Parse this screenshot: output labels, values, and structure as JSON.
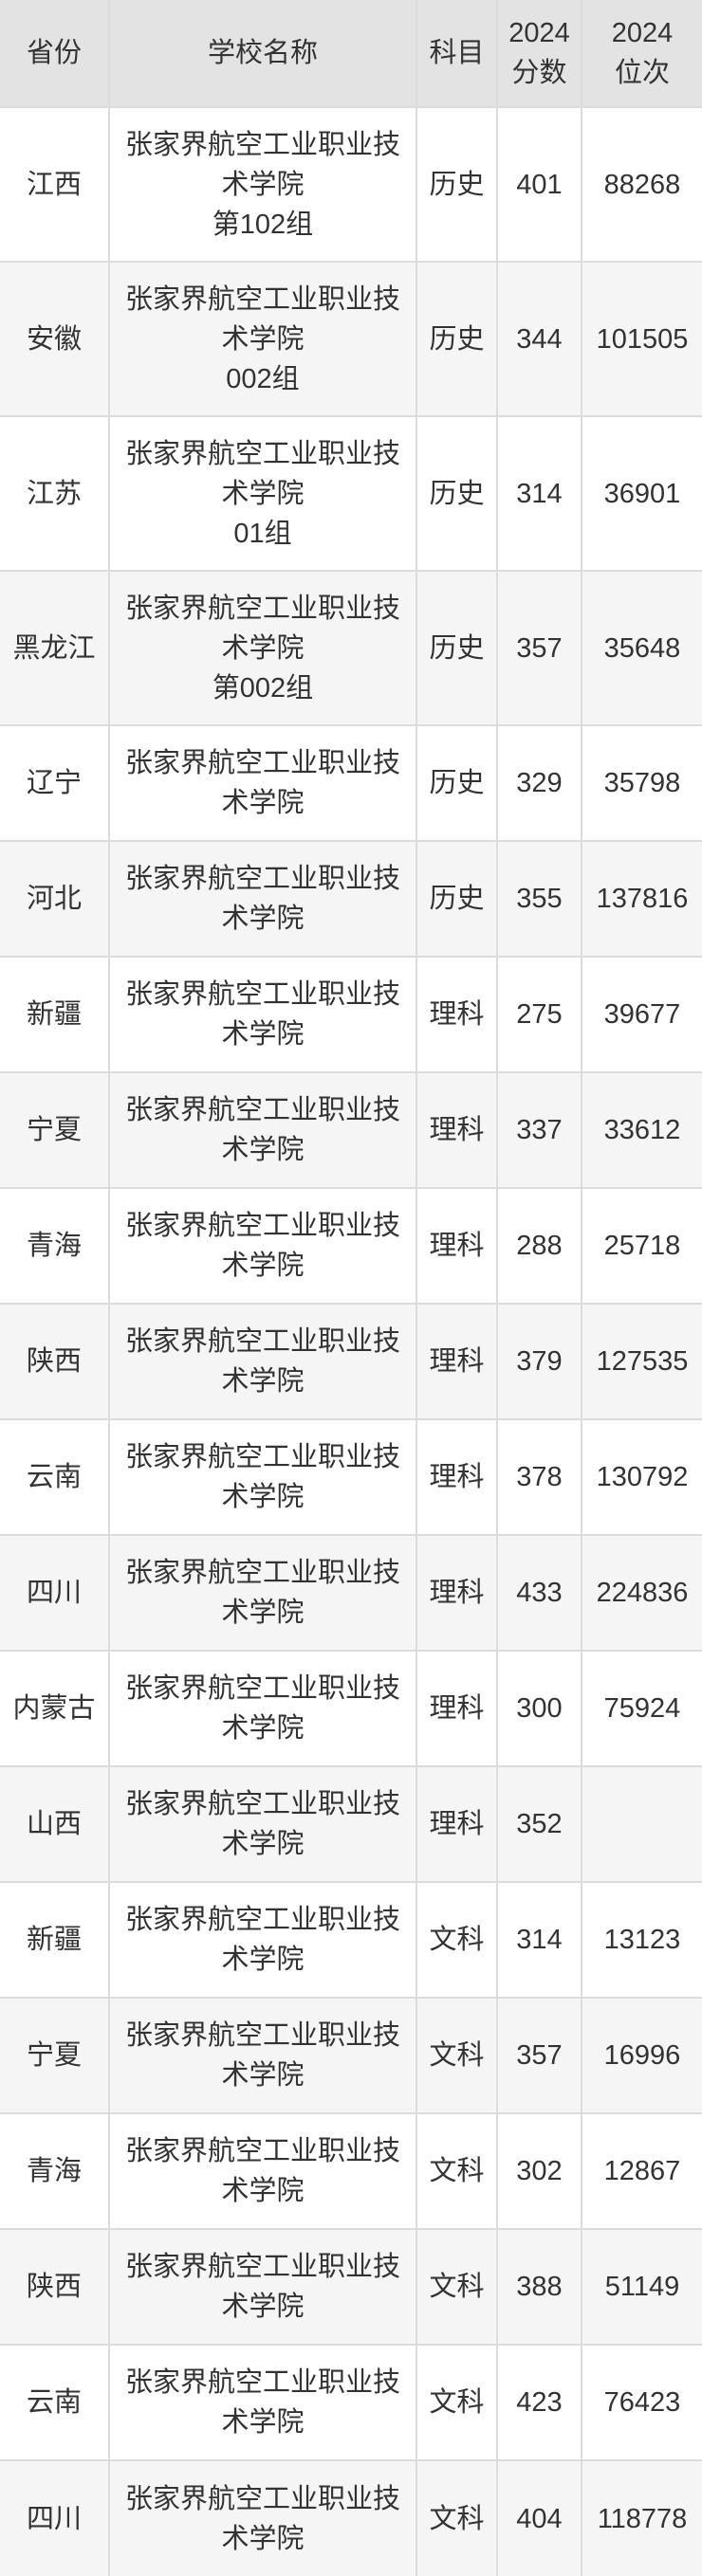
{
  "theme": {
    "header_bg": "#e3e3e3",
    "row_alt_bg": "#f5f5f6",
    "border_color": "#dcdcdc",
    "text_color": "#333333"
  },
  "chart_data": {
    "type": "table",
    "columns": [
      "省份",
      "学校名称",
      "科目",
      "2024分数",
      "2024位次"
    ],
    "header_lines": {
      "province": "省份",
      "school": "学校名称",
      "subject": "科目",
      "score_line1": "2024",
      "score_line2": "分数",
      "rank_line1": "2024",
      "rank_line2": "位次"
    },
    "rows": [
      {
        "province": "江西",
        "school": "张家界航空工业职业技术学院",
        "group": "第102组",
        "subject": "历史",
        "score": "401",
        "rank": "88268"
      },
      {
        "province": "安徽",
        "school": "张家界航空工业职业技术学院",
        "group": "002组",
        "subject": "历史",
        "score": "344",
        "rank": "101505"
      },
      {
        "province": "江苏",
        "school": "张家界航空工业职业技术学院",
        "group": "01组",
        "subject": "历史",
        "score": "314",
        "rank": "36901"
      },
      {
        "province": "黑龙江",
        "school": "张家界航空工业职业技术学院",
        "group": "第002组",
        "subject": "历史",
        "score": "357",
        "rank": "35648"
      },
      {
        "province": "辽宁",
        "school": "张家界航空工业职业技术学院",
        "group": "",
        "subject": "历史",
        "score": "329",
        "rank": "35798"
      },
      {
        "province": "河北",
        "school": "张家界航空工业职业技术学院",
        "group": "",
        "subject": "历史",
        "score": "355",
        "rank": "137816"
      },
      {
        "province": "新疆",
        "school": "张家界航空工业职业技术学院",
        "group": "",
        "subject": "理科",
        "score": "275",
        "rank": "39677"
      },
      {
        "province": "宁夏",
        "school": "张家界航空工业职业技术学院",
        "group": "",
        "subject": "理科",
        "score": "337",
        "rank": "33612"
      },
      {
        "province": "青海",
        "school": "张家界航空工业职业技术学院",
        "group": "",
        "subject": "理科",
        "score": "288",
        "rank": "25718"
      },
      {
        "province": "陕西",
        "school": "张家界航空工业职业技术学院",
        "group": "",
        "subject": "理科",
        "score": "379",
        "rank": "127535"
      },
      {
        "province": "云南",
        "school": "张家界航空工业职业技术学院",
        "group": "",
        "subject": "理科",
        "score": "378",
        "rank": "130792"
      },
      {
        "province": "四川",
        "school": "张家界航空工业职业技术学院",
        "group": "",
        "subject": "理科",
        "score": "433",
        "rank": "224836"
      },
      {
        "province": "内蒙古",
        "school": "张家界航空工业职业技术学院",
        "group": "",
        "subject": "理科",
        "score": "300",
        "rank": "75924"
      },
      {
        "province": "山西",
        "school": "张家界航空工业职业技术学院",
        "group": "",
        "subject": "理科",
        "score": "352",
        "rank": ""
      },
      {
        "province": "新疆",
        "school": "张家界航空工业职业技术学院",
        "group": "",
        "subject": "文科",
        "score": "314",
        "rank": "13123"
      },
      {
        "province": "宁夏",
        "school": "张家界航空工业职业技术学院",
        "group": "",
        "subject": "文科",
        "score": "357",
        "rank": "16996"
      },
      {
        "province": "青海",
        "school": "张家界航空工业职业技术学院",
        "group": "",
        "subject": "文科",
        "score": "302",
        "rank": "12867"
      },
      {
        "province": "陕西",
        "school": "张家界航空工业职业技术学院",
        "group": "",
        "subject": "文科",
        "score": "388",
        "rank": "51149"
      },
      {
        "province": "云南",
        "school": "张家界航空工业职业技术学院",
        "group": "",
        "subject": "文科",
        "score": "423",
        "rank": "76423"
      },
      {
        "province": "四川",
        "school": "张家界航空工业职业技术学院",
        "group": "",
        "subject": "文科",
        "score": "404",
        "rank": "118778"
      }
    ]
  }
}
